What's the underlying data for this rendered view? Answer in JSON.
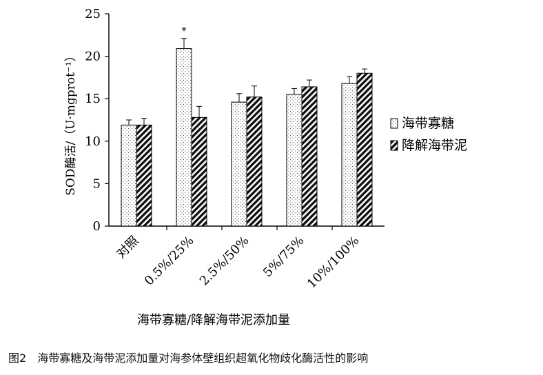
{
  "chart_data": {
    "type": "bar",
    "categories": [
      "对照",
      "0.5%/25%",
      "2.5%/50%",
      "5%/75%",
      "10%/100%"
    ],
    "series": [
      {
        "name": "海带寡糖",
        "values": [
          11.9,
          20.9,
          14.6,
          15.5,
          16.8
        ],
        "errors": [
          0.6,
          1.2,
          1.0,
          0.7,
          0.8
        ],
        "pattern": "dots"
      },
      {
        "name": "降解海带泥",
        "values": [
          11.9,
          12.8,
          15.2,
          16.4,
          18.0
        ],
        "errors": [
          0.8,
          1.3,
          1.3,
          0.8,
          0.5
        ],
        "pattern": "hatch"
      }
    ],
    "significance": [
      {
        "category": "0.5%/25%",
        "series": "海带寡糖",
        "label": "*"
      }
    ],
    "ylim": [
      0,
      25
    ],
    "yticks": [
      0,
      5,
      10,
      15,
      20,
      25
    ],
    "xlabel": "海带寡糖/降解海带泥添加量",
    "ylabel": "SOD酶活/（U·mgprot⁻¹）",
    "legend_position": "right",
    "grid": false
  },
  "caption": {
    "number": "图2",
    "text": "海带寡糖及海带泥添加量对海参体壁组织超氧化物歧化酶活性的影响"
  }
}
